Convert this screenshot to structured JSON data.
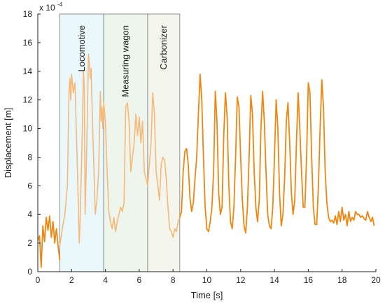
{
  "chart_data": {
    "type": "line",
    "xlabel": "Time [s]",
    "ylabel": "Displacement [m]",
    "y_exponent_label": "x 10",
    "y_exponent_power": "-4",
    "xlim": [
      0,
      20
    ],
    "ylim": [
      0,
      18
    ],
    "x_ticks": [
      0,
      2,
      4,
      6,
      8,
      10,
      12,
      14,
      16,
      18,
      20
    ],
    "y_ticks": [
      0,
      2,
      4,
      6,
      8,
      10,
      12,
      14,
      16,
      18
    ],
    "grid": false,
    "legend": "none",
    "colors": {
      "line_dark": "#f0860f",
      "line_light": "#f8b878",
      "region_locomotive": "#eaf8fb",
      "region_measuring_wagon": "#edf5ec",
      "region_carbonizer": "#f4f6ee",
      "region_border": "#777777",
      "axis": "#222222"
    },
    "regions": [
      {
        "label": "Locomotive",
        "x_start": 1.3,
        "x_end": 3.9
      },
      {
        "label": "Measuring wagon",
        "x_start": 3.9,
        "x_end": 6.5
      },
      {
        "label": "Carbonizer",
        "x_start": 6.5,
        "x_end": 8.4
      }
    ],
    "series": [
      {
        "segment": "before",
        "x": [
          0.0,
          0.1,
          0.2,
          0.3,
          0.4,
          0.5,
          0.6,
          0.7,
          0.8,
          0.9,
          1.0,
          1.1,
          1.2,
          1.3
        ],
        "y": [
          2.2,
          2.5,
          0.3,
          3.2,
          2.1,
          3.8,
          2.9,
          3.9,
          2.4,
          3.5,
          2.0,
          3.0,
          1.8,
          0.8
        ]
      },
      {
        "segment": "regions",
        "x": [
          1.3,
          1.45,
          1.6,
          1.75,
          1.85,
          1.9,
          1.95,
          2.0,
          2.1,
          2.2,
          2.3,
          2.4,
          2.45,
          2.5,
          2.6,
          2.7,
          2.75,
          2.8,
          2.9,
          3.0,
          3.05,
          3.1,
          3.15,
          3.2,
          3.3,
          3.4,
          3.5,
          3.6,
          3.7,
          3.75,
          3.8,
          3.85,
          3.9,
          4.0,
          4.1,
          4.2,
          4.3,
          4.4,
          4.5,
          4.6,
          4.7,
          4.8,
          4.9,
          5.0,
          5.1,
          5.2,
          5.3,
          5.4,
          5.5,
          5.6,
          5.7,
          5.8,
          5.9,
          6.0,
          6.1,
          6.2,
          6.3,
          6.4,
          6.5,
          6.6,
          6.7,
          6.8,
          6.9,
          7.0,
          7.1,
          7.2,
          7.3,
          7.4,
          7.5,
          7.6,
          7.7,
          7.8,
          7.9,
          8.0,
          8.1,
          8.2,
          8.3,
          8.4
        ],
        "y": [
          1.8,
          3.0,
          4.0,
          6.0,
          12.8,
          13.5,
          12.0,
          13.8,
          12.5,
          13.2,
          9.0,
          4.5,
          2.0,
          3.5,
          8.0,
          14.0,
          13.0,
          4.0,
          9.0,
          15.2,
          14.5,
          13.5,
          14.2,
          12.0,
          8.0,
          4.0,
          5.0,
          7.0,
          12.6,
          10.5,
          11.5,
          10.0,
          11.8,
          10.5,
          7.0,
          4.2,
          3.5,
          3.0,
          3.8,
          2.8,
          3.5,
          4.0,
          4.5,
          4.2,
          4.8,
          11.5,
          11.8,
          10.5,
          7.0,
          8.0,
          9.0,
          11.0,
          9.5,
          10.8,
          9.0,
          10.5,
          7.0,
          6.5,
          6.0,
          7.5,
          9.0,
          12.5,
          11.0,
          7.0,
          6.0,
          5.0,
          7.5,
          8.0,
          7.8,
          6.5,
          4.5,
          3.0,
          2.8,
          2.4,
          3.0,
          2.8,
          3.5,
          3.8
        ]
      },
      {
        "segment": "after",
        "x": [
          8.4,
          8.5,
          8.6,
          8.7,
          8.8,
          8.9,
          9.0,
          9.1,
          9.2,
          9.3,
          9.4,
          9.5,
          9.6,
          9.7,
          9.8,
          9.9,
          10.0,
          10.1,
          10.2,
          10.3,
          10.4,
          10.5,
          10.6,
          10.7,
          10.8,
          10.9,
          11.0,
          11.1,
          11.2,
          11.3,
          11.4,
          11.5,
          11.6,
          11.7,
          11.8,
          11.9,
          12.0,
          12.1,
          12.2,
          12.3,
          12.4,
          12.5,
          12.6,
          12.7,
          12.8,
          12.9,
          13.0,
          13.1,
          13.2,
          13.3,
          13.4,
          13.5,
          13.6,
          13.7,
          13.8,
          13.9,
          14.0,
          14.1,
          14.2,
          14.3,
          14.4,
          14.5,
          14.6,
          14.7,
          14.8,
          14.9,
          15.0,
          15.1,
          15.2,
          15.3,
          15.4,
          15.5,
          15.6,
          15.7,
          15.8,
          15.9,
          16.0,
          16.1,
          16.2,
          16.3,
          16.4,
          16.5,
          16.6,
          16.7,
          16.8,
          16.9,
          17.0,
          17.1,
          17.2,
          17.3,
          17.4,
          17.5,
          17.6,
          17.7,
          17.8,
          17.9,
          18.0,
          18.1,
          18.2,
          18.3,
          18.4,
          18.5,
          18.6,
          18.7,
          18.8,
          18.9,
          19.0,
          19.1,
          19.2,
          19.3,
          19.4,
          19.5,
          19.6,
          19.7,
          19.8,
          19.9
        ],
        "y": [
          3.8,
          4.2,
          7.0,
          8.4,
          8.6,
          7.5,
          5.2,
          4.2,
          4.8,
          6.5,
          8.0,
          11.0,
          13.8,
          12.0,
          8.0,
          4.5,
          3.0,
          2.8,
          3.5,
          4.5,
          7.0,
          12.6,
          10.5,
          5.5,
          4.0,
          4.5,
          9.5,
          12.5,
          10.8,
          6.0,
          3.5,
          3.0,
          4.5,
          8.0,
          12.2,
          11.5,
          8.0,
          5.0,
          3.2,
          2.7,
          4.5,
          8.0,
          12.3,
          11.0,
          7.0,
          4.5,
          3.5,
          5.0,
          10.0,
          12.6,
          10.5,
          7.0,
          4.0,
          3.2,
          3.0,
          4.5,
          8.0,
          12.0,
          10.0,
          5.5,
          3.2,
          4.0,
          6.5,
          10.5,
          11.8,
          9.0,
          5.5,
          4.0,
          5.0,
          9.0,
          12.5,
          10.0,
          7.0,
          4.5,
          4.5,
          8.0,
          13.2,
          12.5,
          8.0,
          4.5,
          3.3,
          3.3,
          6.0,
          10.0,
          13.4,
          11.5,
          7.0,
          4.8,
          3.8,
          3.5,
          3.6,
          3.4,
          3.9,
          3.3,
          4.2,
          3.5,
          4.5,
          3.6,
          4.0,
          3.2,
          4.2,
          3.5,
          3.8,
          3.6,
          4.2,
          4.0,
          4.0,
          3.8,
          3.9,
          3.7,
          3.6,
          4.2,
          3.8,
          3.5,
          3.8,
          3.2
        ]
      }
    ]
  }
}
